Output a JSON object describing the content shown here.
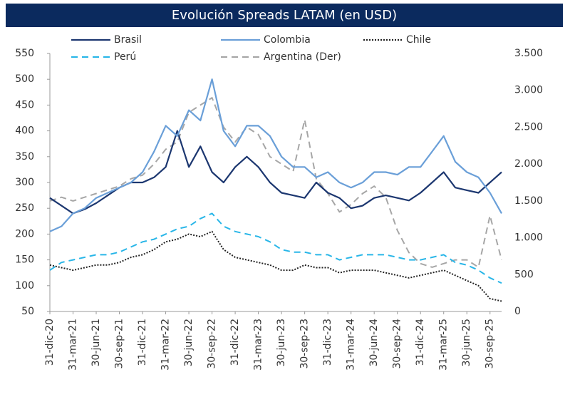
{
  "chart_data": {
    "type": "line",
    "title": "Evolución Spreads LATAM (en USD)",
    "legend": "top",
    "categories": [
      "31-dic-20",
      null,
      "31-mar-21",
      null,
      "30-jun-21",
      null,
      "30-sep-21",
      null,
      "31-dic-21",
      null,
      "31-mar-22",
      null,
      "30-jun-22",
      null,
      "30-sep-22",
      null,
      "31-dic-22",
      null,
      "31-mar-23",
      null,
      "30-jun-23",
      null,
      "30-sep-23",
      null,
      "31-dic-23",
      null,
      "31-mar-24",
      null,
      "30-jun-24",
      null,
      "30-sep-24",
      null,
      "31-dic-24",
      null,
      "31-mar-25",
      null,
      "30-jun-25",
      null,
      "30-sep-25",
      null
    ],
    "ylim": [
      50,
      550
    ],
    "yticks": [
      50,
      100,
      150,
      200,
      250,
      300,
      350,
      400,
      450,
      500,
      550
    ],
    "y2lim": [
      0,
      3500
    ],
    "y2ticks": [
      0,
      {
        "value": 500,
        "label": "500"
      },
      {
        "value": 1000,
        "label": "1.000"
      },
      {
        "value": 1500,
        "label": "1.500"
      },
      {
        "value": 2000,
        "label": "2.000"
      },
      {
        "value": 2500,
        "label": "2.500"
      },
      {
        "value": 3000,
        "label": "3.000"
      },
      {
        "value": 3500,
        "label": "3.500"
      }
    ],
    "series": [
      {
        "name": "Brasil",
        "color": "#1c3770",
        "style": "solid",
        "values": [
          270,
          255,
          240,
          248,
          260,
          275,
          290,
          300,
          300,
          310,
          330,
          400,
          330,
          370,
          320,
          300,
          330,
          350,
          330,
          300,
          280,
          275,
          270,
          300,
          280,
          270,
          250,
          255,
          270,
          275,
          270,
          265,
          280,
          300,
          320,
          290,
          285,
          280,
          300,
          320
        ]
      },
      {
        "name": "Colombia",
        "color": "#6a9fd8",
        "style": "solid",
        "values": [
          205,
          215,
          240,
          250,
          270,
          280,
          290,
          300,
          320,
          360,
          410,
          390,
          440,
          420,
          500,
          400,
          370,
          410,
          410,
          390,
          350,
          330,
          330,
          310,
          320,
          300,
          290,
          300,
          320,
          320,
          315,
          330,
          330,
          360,
          390,
          340,
          320,
          310,
          280,
          240
        ]
      },
      {
        "name": "Chile",
        "color": "#222222",
        "style": "dotted",
        "values": [
          140,
          135,
          130,
          135,
          140,
          140,
          145,
          155,
          160,
          170,
          185,
          190,
          200,
          195,
          205,
          170,
          155,
          150,
          145,
          140,
          130,
          130,
          140,
          135,
          135,
          125,
          130,
          130,
          130,
          125,
          120,
          115,
          120,
          125,
          130,
          120,
          110,
          100,
          75,
          70
        ]
      },
      {
        "name": "Perú",
        "color": "#29b6e8",
        "style": "dashed",
        "values": [
          130,
          145,
          150,
          155,
          160,
          160,
          165,
          175,
          185,
          190,
          200,
          210,
          215,
          230,
          240,
          215,
          205,
          200,
          195,
          185,
          170,
          165,
          165,
          160,
          160,
          150,
          155,
          160,
          160,
          160,
          155,
          150,
          150,
          155,
          160,
          145,
          140,
          130,
          115,
          105
        ]
      },
      {
        "name": "Argentina (Der)",
        "color": "#a6a6a6",
        "style": "dashed",
        "axis": "y2",
        "values": [
          1500,
          1550,
          1500,
          1550,
          1600,
          1650,
          1700,
          1800,
          1850,
          2000,
          2200,
          2300,
          2700,
          2800,
          2900,
          2500,
          2300,
          2500,
          2400,
          2100,
          2000,
          1900,
          2600,
          1800,
          1600,
          1350,
          1450,
          1600,
          1700,
          1550,
          1100,
          800,
          650,
          600,
          650,
          700,
          700,
          600,
          1300,
          700
        ]
      }
    ]
  }
}
